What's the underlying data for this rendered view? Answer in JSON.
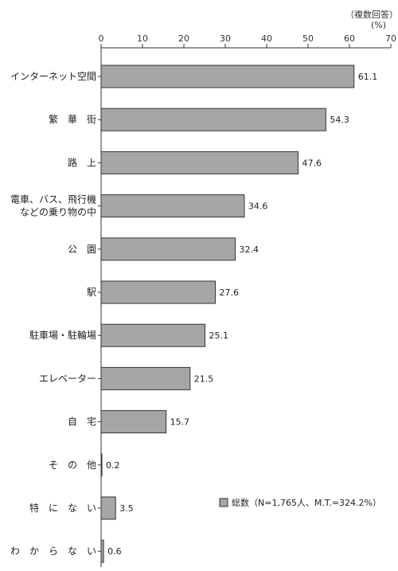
{
  "chart_data": {
    "type": "bar",
    "orientation": "horizontal",
    "note": "（複数回答）",
    "unit": "(%)",
    "xlim": [
      0,
      70
    ],
    "ticks": [
      0,
      10,
      20,
      30,
      40,
      50,
      60,
      70
    ],
    "categories": [
      {
        "label": [
          "インターネット空間"
        ],
        "value": 61.1,
        "value_label": "61.1"
      },
      {
        "label": [
          "繁　華　街"
        ],
        "value": 54.3,
        "value_label": "54.3"
      },
      {
        "label": [
          "路　上"
        ],
        "value": 47.6,
        "value_label": "47.6"
      },
      {
        "label": [
          "電車、バス、飛行機",
          "などの乗り物の中"
        ],
        "value": 34.6,
        "value_label": "34.6"
      },
      {
        "label": [
          "公　園"
        ],
        "value": 32.4,
        "value_label": "32.4"
      },
      {
        "label": [
          "駅"
        ],
        "value": 27.6,
        "value_label": "27.6"
      },
      {
        "label": [
          "駐車場・駐輪場"
        ],
        "value": 25.1,
        "value_label": "25.1"
      },
      {
        "label": [
          "エレベーター"
        ],
        "value": 21.5,
        "value_label": "21.5"
      },
      {
        "label": [
          "自　宅"
        ],
        "value": 15.7,
        "value_label": "15.7"
      },
      {
        "label": [
          "そ　の　他"
        ],
        "value": 0.2,
        "value_label": "0.2"
      },
      {
        "label": [
          "特　に　な　い"
        ],
        "value": 3.5,
        "value_label": "3.5"
      },
      {
        "label": [
          "わ　か　ら　な　い"
        ],
        "value": 0.6,
        "value_label": "0.6"
      }
    ],
    "legend": "総数（N=1,765人、M.T.=324.2%）",
    "colors": {
      "bar_fill": "#a6a6a6",
      "bar_stroke": "#333333",
      "axis": "#333333"
    }
  }
}
